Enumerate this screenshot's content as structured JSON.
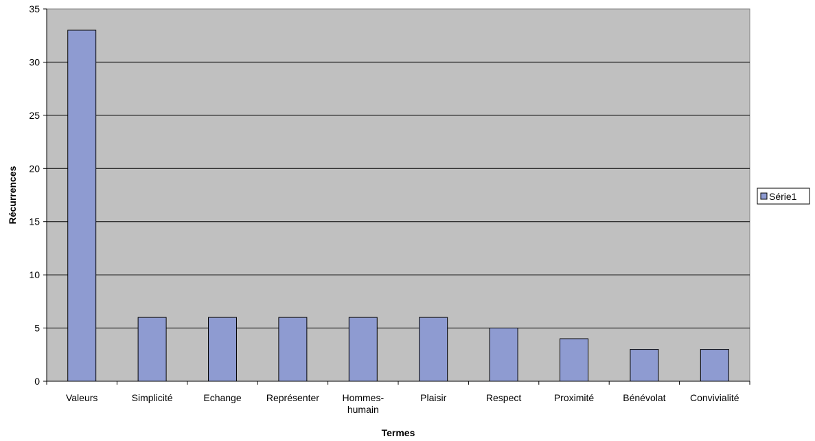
{
  "chart_data": {
    "type": "bar",
    "categories": [
      "Valeurs",
      "Simplicité",
      "Echange",
      "Représenter",
      "Hommes-humain",
      "Plaisir",
      "Respect",
      "Proximité",
      "Bénévolat",
      "Convivialité"
    ],
    "category_label_lines": [
      [
        "Valeurs"
      ],
      [
        "Simplicité"
      ],
      [
        "Echange"
      ],
      [
        "Représenter"
      ],
      [
        "Hommes-",
        "humain"
      ],
      [
        "Plaisir"
      ],
      [
        "Respect"
      ],
      [
        "Proximité"
      ],
      [
        "Bénévolat"
      ],
      [
        "Convivialité"
      ]
    ],
    "series": [
      {
        "name": "Série1",
        "values": [
          33,
          6,
          6,
          6,
          6,
          6,
          5,
          4,
          3,
          3
        ]
      }
    ],
    "title": "",
    "xlabel": "Termes",
    "ylabel": "Récurrences",
    "ylim": [
      0,
      35
    ],
    "yticks": [
      0,
      5,
      10,
      15,
      20,
      25,
      30,
      35
    ],
    "grid": true,
    "legend_position": "right",
    "colors": {
      "bar_fill": "#8e9bd1",
      "bar_stroke": "#000000",
      "plot_background": "#c0c0c0",
      "gridline": "#000000"
    }
  }
}
